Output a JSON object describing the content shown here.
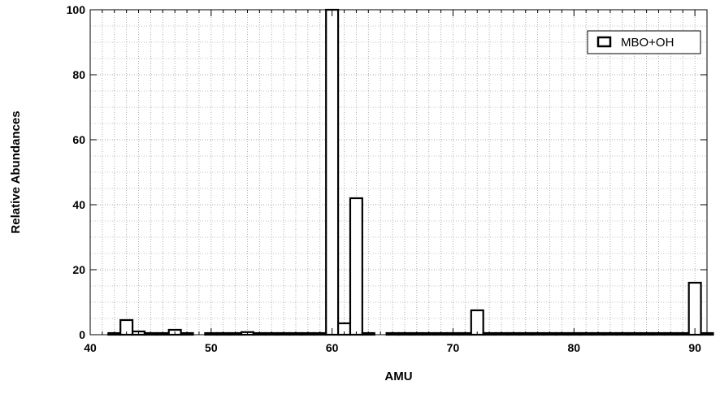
{
  "chart_data": {
    "type": "bar",
    "title": "",
    "xlabel": "AMU",
    "ylabel": "Relative Abundances",
    "xlim": [
      40,
      91
    ],
    "ylim": [
      0,
      100
    ],
    "x_major_ticks": [
      40,
      50,
      60,
      70,
      80,
      90
    ],
    "y_major_ticks": [
      0,
      20,
      40,
      60,
      80,
      100
    ],
    "grid": "minor-dotted",
    "legend_position": "top-right",
    "bar_style": "open",
    "bar_color": "#000000",
    "series": [
      {
        "name": "MBO+OH",
        "x": [
          42,
          43,
          44,
          45,
          46,
          47,
          48,
          50,
          51,
          52,
          53,
          54,
          55,
          56,
          57,
          58,
          59,
          60,
          61,
          62,
          63,
          65,
          66,
          67,
          68,
          69,
          70,
          71,
          72,
          73,
          74,
          75,
          76,
          77,
          78,
          79,
          80,
          81,
          82,
          83,
          84,
          85,
          86,
          87,
          88,
          89,
          90,
          91
        ],
        "values": [
          0.5,
          4.5,
          1,
          0.5,
          0.5,
          1.5,
          0.5,
          0.5,
          0.5,
          0.5,
          0.8,
          0.5,
          0.5,
          0.5,
          0.5,
          0.5,
          0.5,
          100,
          3.5,
          42,
          0.5,
          0.5,
          0.5,
          0.5,
          0.5,
          0.5,
          0.5,
          0.5,
          7.5,
          0.5,
          0.5,
          0.5,
          0.5,
          0.5,
          0.5,
          0.5,
          0.5,
          0.5,
          0.5,
          0.5,
          0.5,
          0.5,
          0.5,
          0.5,
          0.5,
          0.5,
          16,
          0.5
        ]
      }
    ]
  }
}
